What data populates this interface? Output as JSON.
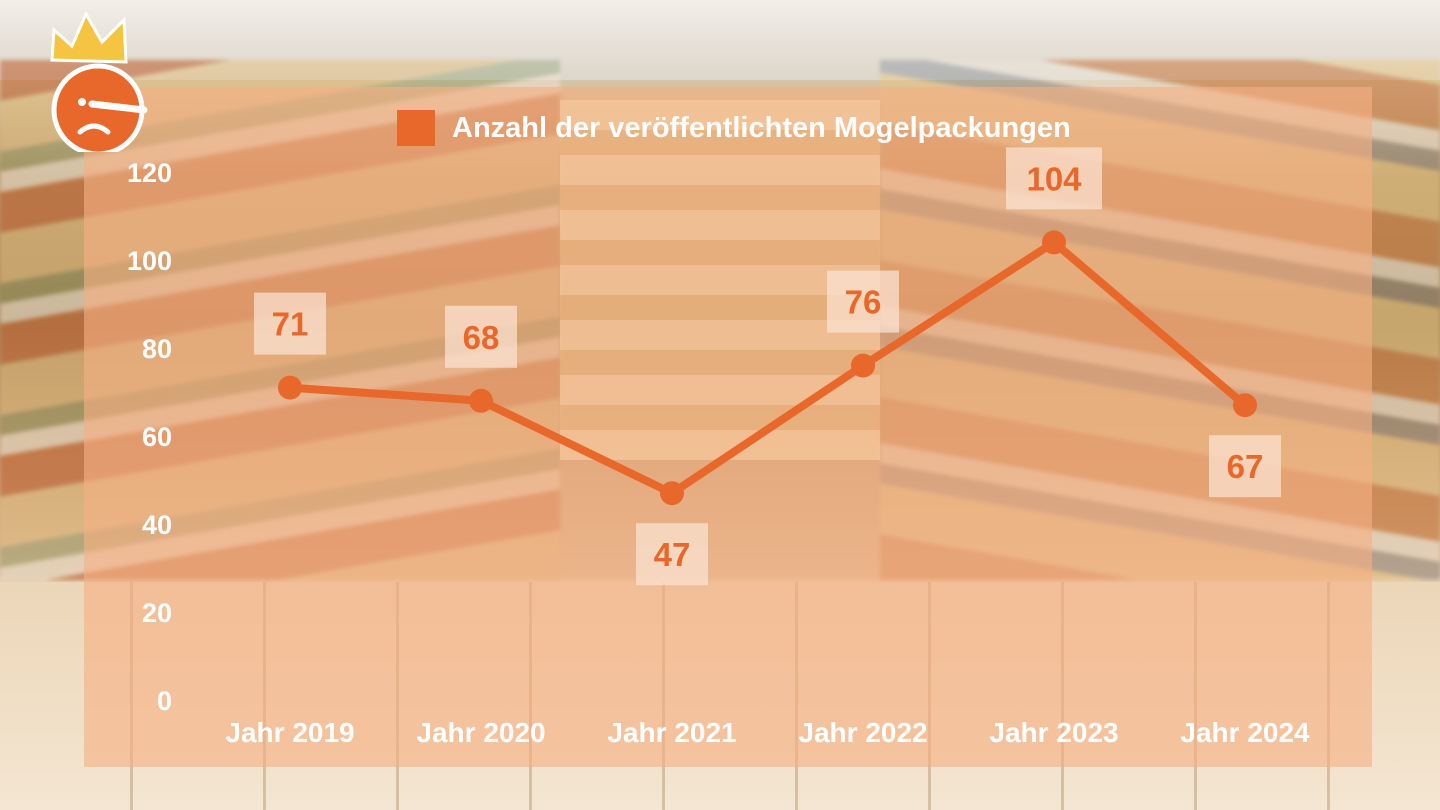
{
  "colors": {
    "accent": "#e8672a",
    "panel": "#f6b082",
    "label_box": "#fbe3d2",
    "text_light": "#ffffff"
  },
  "logo": {
    "icon": "crowned-long-nose-face-icon"
  },
  "chart_data": {
    "type": "line",
    "categories": [
      "Jahr 2019",
      "Jahr 2020",
      "Jahr 2021",
      "Jahr 2022",
      "Jahr 2023",
      "Jahr 2024"
    ],
    "series": [
      {
        "name": "Anzahl der veröffentlichten Mogelpackungen",
        "values": [
          71,
          68,
          47,
          76,
          104,
          67
        ],
        "color": "#e8672a"
      }
    ],
    "data_labels": [
      "71",
      "68",
      "47",
      "76",
      "104",
      "67"
    ],
    "yticks": [
      "0",
      "20",
      "40",
      "60",
      "80",
      "100",
      "120"
    ],
    "ylim": [
      0,
      120
    ],
    "legend_position": "top",
    "grid": false
  }
}
